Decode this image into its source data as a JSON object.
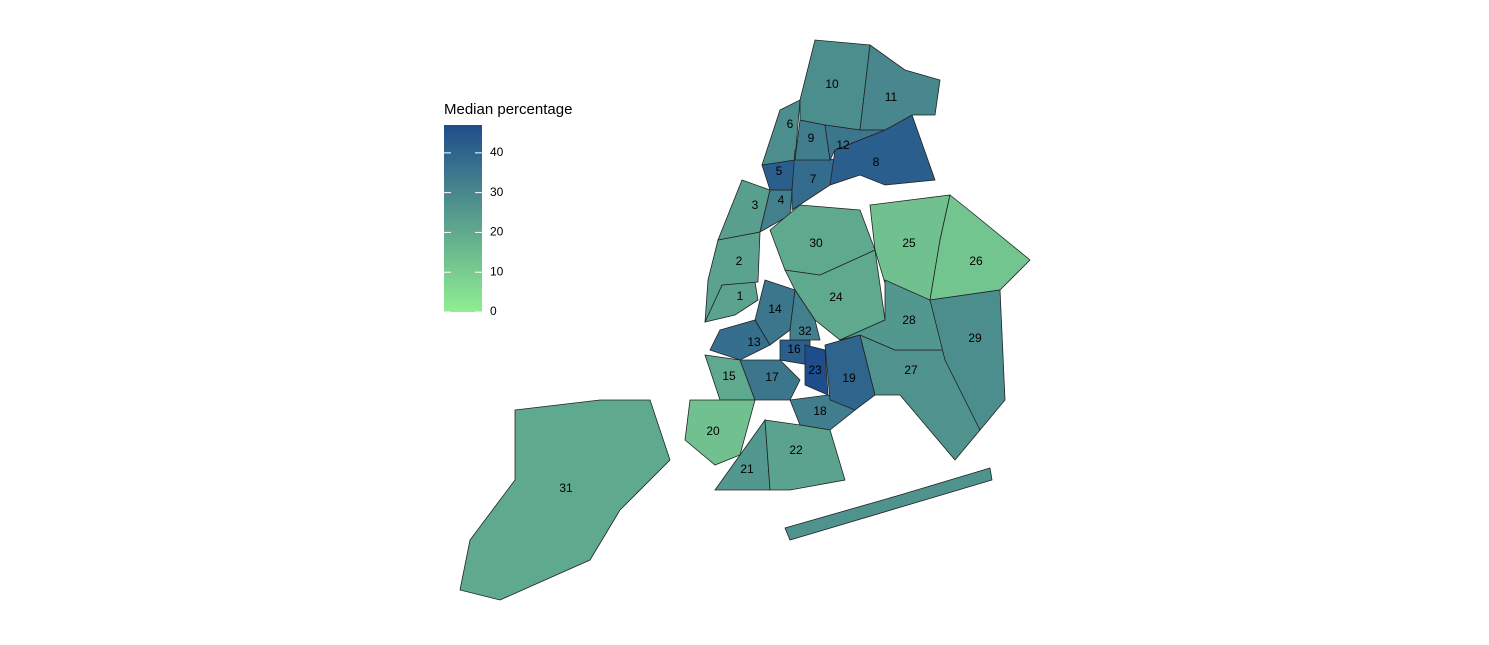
{
  "map": {
    "legend": {
      "title": "Median percentage",
      "range": [
        0,
        47
      ],
      "ticks": [
        0,
        10,
        20,
        30,
        40
      ],
      "colors": [
        "#90ee90",
        "#1e4d8c"
      ]
    },
    "regions": [
      {
        "label": "1",
        "value": 22
      },
      {
        "label": "2",
        "value": 22
      },
      {
        "label": "3",
        "value": 23
      },
      {
        "label": "4",
        "value": 32
      },
      {
        "label": "5",
        "value": 42
      },
      {
        "label": "6",
        "value": 28
      },
      {
        "label": "7",
        "value": 38
      },
      {
        "label": "8",
        "value": 42
      },
      {
        "label": "9",
        "value": 33
      },
      {
        "label": "10",
        "value": 28
      },
      {
        "label": "11",
        "value": 30
      },
      {
        "label": "12",
        "value": 35
      },
      {
        "label": "13",
        "value": 37
      },
      {
        "label": "14",
        "value": 35
      },
      {
        "label": "15",
        "value": 20
      },
      {
        "label": "16",
        "value": 42
      },
      {
        "label": "17",
        "value": 35
      },
      {
        "label": "18",
        "value": 33
      },
      {
        "label": "19",
        "value": 40
      },
      {
        "label": "20",
        "value": 13
      },
      {
        "label": "21",
        "value": 25
      },
      {
        "label": "22",
        "value": 22
      },
      {
        "label": "23",
        "value": 47
      },
      {
        "label": "24",
        "value": 20
      },
      {
        "label": "25",
        "value": 13
      },
      {
        "label": "26",
        "value": 12
      },
      {
        "label": "27",
        "value": 27
      },
      {
        "label": "28",
        "value": 25
      },
      {
        "label": "29",
        "value": 28
      },
      {
        "label": "30",
        "value": 20
      },
      {
        "label": "31",
        "value": 20
      },
      {
        "label": "32",
        "value": 32
      }
    ]
  }
}
